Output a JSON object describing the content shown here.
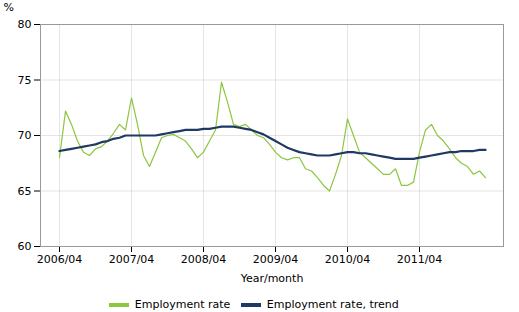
{
  "chart_data": {
    "type": "line",
    "xlabel": "Year/month",
    "ylabel": "%",
    "categories": [
      "2006/04",
      null,
      null,
      null,
      null,
      null,
      null,
      null,
      null,
      null,
      null,
      null,
      "2007/04",
      null,
      null,
      null,
      null,
      null,
      null,
      null,
      null,
      null,
      null,
      null,
      "2008/04",
      null,
      null,
      null,
      null,
      null,
      null,
      null,
      null,
      null,
      null,
      null,
      "2009/04",
      null,
      null,
      null,
      null,
      null,
      null,
      null,
      null,
      null,
      null,
      null,
      "2010/04",
      null,
      null,
      null,
      null,
      null,
      null,
      null,
      null,
      null,
      null,
      null,
      "2011/04",
      null,
      null,
      null,
      null,
      null,
      null,
      null,
      null,
      null,
      null,
      null
    ],
    "series": [
      {
        "name": "Employment rate",
        "color": "#8dc63f",
        "values": [
          68.0,
          72.2,
          71.0,
          69.5,
          68.5,
          68.2,
          68.8,
          69.0,
          69.5,
          70.2,
          71.0,
          70.5,
          73.4,
          71.0,
          68.2,
          67.2,
          68.5,
          69.8,
          70.0,
          70.1,
          69.8,
          69.5,
          68.8,
          68.0,
          68.5,
          69.5,
          70.5,
          74.8,
          73.0,
          71.0,
          70.8,
          71.0,
          70.5,
          70.0,
          69.8,
          69.2,
          68.5,
          68.0,
          67.8,
          68.0,
          68.0,
          67.0,
          66.8,
          66.2,
          65.5,
          65.0,
          66.5,
          68.2,
          71.5,
          70.0,
          68.5,
          68.0,
          67.5,
          67.0,
          66.5,
          66.5,
          67.0,
          65.5,
          65.5,
          65.8,
          68.5,
          70.5,
          71.0,
          70.0,
          69.5,
          68.8,
          68.0,
          67.5,
          67.2,
          66.5,
          66.8,
          66.2
        ]
      },
      {
        "name": "Employment rate, trend",
        "color": "#1f3864",
        "values": [
          68.6,
          68.7,
          68.8,
          68.9,
          69.0,
          69.1,
          69.2,
          69.4,
          69.5,
          69.7,
          69.8,
          70.0,
          70.0,
          70.0,
          70.0,
          70.0,
          70.0,
          70.1,
          70.2,
          70.3,
          70.4,
          70.5,
          70.5,
          70.5,
          70.6,
          70.6,
          70.7,
          70.8,
          70.8,
          70.8,
          70.7,
          70.6,
          70.5,
          70.3,
          70.1,
          69.8,
          69.5,
          69.2,
          68.9,
          68.7,
          68.5,
          68.4,
          68.3,
          68.2,
          68.2,
          68.2,
          68.3,
          68.4,
          68.5,
          68.5,
          68.4,
          68.4,
          68.3,
          68.2,
          68.1,
          68.0,
          67.9,
          67.9,
          67.9,
          67.9,
          68.0,
          68.1,
          68.2,
          68.3,
          68.4,
          68.5,
          68.5,
          68.6,
          68.6,
          68.6,
          68.7,
          68.7
        ]
      }
    ],
    "ylim": [
      60,
      80
    ],
    "yticks": [
      60,
      65,
      70,
      75,
      80
    ],
    "grid": true,
    "legend": "bottom"
  }
}
